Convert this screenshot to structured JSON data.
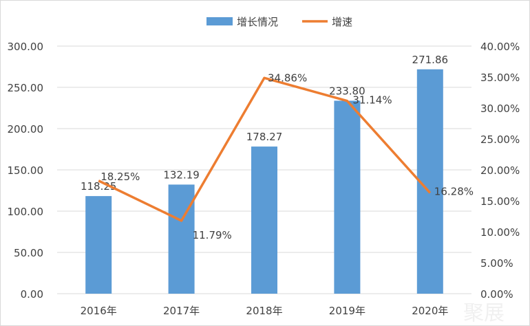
{
  "chart_data": {
    "type": "bar+line",
    "categories": [
      "2016年",
      "2017年",
      "2018年",
      "2019年",
      "2020年"
    ],
    "series": [
      {
        "name": "增长情况",
        "type": "bar",
        "axis": "left",
        "color": "#5b9bd5",
        "values": [
          118.25,
          132.19,
          178.27,
          233.8,
          271.86
        ],
        "labels": [
          "118.25",
          "132.19",
          "178.27",
          "233.80",
          "271.86"
        ]
      },
      {
        "name": "增速",
        "type": "line",
        "axis": "right",
        "color": "#ed7d31",
        "values": [
          18.25,
          11.79,
          34.86,
          31.14,
          16.28
        ],
        "labels": [
          "18.25%",
          "11.79%",
          "34.86%",
          "31.14%",
          "16.28%"
        ]
      }
    ],
    "left_axis": {
      "ylim": [
        0,
        300
      ],
      "ticks": [
        "0.00",
        "50.00",
        "100.00",
        "150.00",
        "200.00",
        "250.00",
        "300.00"
      ]
    },
    "right_axis": {
      "ylim": [
        0,
        40
      ],
      "ticks": [
        "0.00%",
        "5.00%",
        "10.00%",
        "15.00%",
        "20.00%",
        "25.00%",
        "30.00%",
        "35.00%",
        "40.00%"
      ]
    },
    "grid": true,
    "legend": "top"
  },
  "watermark": "聚展"
}
